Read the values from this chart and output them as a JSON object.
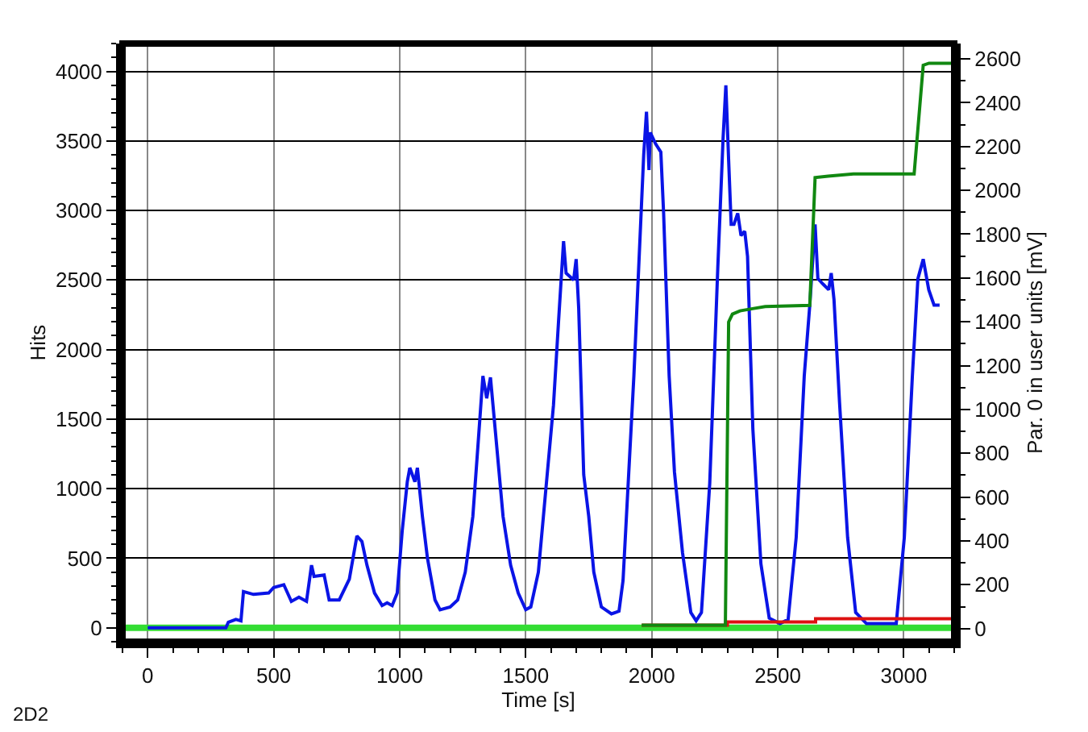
{
  "chart_data": {
    "type": "line",
    "xlabel": "Time [s]",
    "ylabel": "Hits",
    "y2label": "Par. 0 in user units [mV]",
    "xlim": [
      -100,
      3200
    ],
    "xticks": [
      0,
      500,
      1000,
      1500,
      2000,
      2500,
      3000
    ],
    "ylim": [
      -100,
      4200
    ],
    "yticks": [
      0,
      500,
      1000,
      1500,
      2000,
      2500,
      3000,
      3500,
      4000
    ],
    "y2lim": [
      -60,
      2670
    ],
    "y2ticks": [
      0,
      200,
      400,
      600,
      800,
      1000,
      1200,
      1400,
      1600,
      1800,
      2000,
      2200,
      2400,
      2600
    ],
    "grid": true,
    "marker": "none",
    "line_style": "solid",
    "annotations": [
      "2D2"
    ],
    "series": [
      {
        "color": "#33dd33",
        "x": [
          -100,
          3200
        ],
        "values": [
          0,
          0
        ]
      },
      {
        "color": "#dd1111",
        "axis": "y2",
        "x": [
          1960,
          2300,
          2300,
          2650,
          2650,
          3200
        ],
        "values": [
          15,
          15,
          30,
          30,
          45,
          45
        ]
      },
      {
        "color": "#118811",
        "axis": "y2",
        "x": [
          1960,
          2292,
          2305,
          2320,
          2350,
          2400,
          2450,
          2627,
          2648,
          2700,
          2800,
          3041,
          3077,
          3100,
          3200
        ],
        "values": [
          15,
          15,
          1399,
          1435,
          1450,
          1460,
          1470,
          1475,
          2058,
          2065,
          2075,
          2075,
          2571,
          2580,
          2580
        ]
      },
      {
        "color": "#0a14e6",
        "x": [
          0,
          310,
          320,
          350,
          370,
          380,
          420,
          480,
          500,
          540,
          570,
          600,
          630,
          650,
          660,
          700,
          720,
          760,
          800,
          830,
          850,
          870,
          900,
          930,
          950,
          970,
          990,
          1010,
          1030,
          1040,
          1060,
          1070,
          1090,
          1110,
          1140,
          1160,
          1200,
          1230,
          1260,
          1290,
          1310,
          1330,
          1345,
          1360,
          1380,
          1410,
          1440,
          1470,
          1500,
          1520,
          1550,
          1580,
          1610,
          1630,
          1650,
          1660,
          1690,
          1700,
          1710,
          1730,
          1750,
          1770,
          1800,
          1840,
          1870,
          1886,
          1929,
          1968,
          1979,
          1989,
          1994,
          2015,
          2036,
          2047,
          2069,
          2090,
          2122,
          2155,
          2176,
          2197,
          2230,
          2262,
          2283,
          2294,
          2305,
          2315,
          2326,
          2341,
          2354,
          2369,
          2380,
          2401,
          2433,
          2466,
          2509,
          2541,
          2573,
          2605,
          2627,
          2648,
          2659,
          2680,
          2702,
          2712,
          2723,
          2745,
          2777,
          2809,
          2852,
          2970,
          3002,
          3034,
          3056,
          3077,
          3099,
          3120,
          3142
        ],
        "values": [
          0,
          0,
          40,
          60,
          50,
          260,
          240,
          250,
          290,
          310,
          190,
          220,
          190,
          450,
          370,
          380,
          200,
          200,
          350,
          660,
          620,
          450,
          250,
          160,
          180,
          160,
          250,
          700,
          1050,
          1150,
          1050,
          1150,
          800,
          500,
          200,
          130,
          150,
          200,
          400,
          800,
          1300,
          1810,
          1650,
          1800,
          1400,
          800,
          450,
          250,
          130,
          150,
          400,
          1000,
          1600,
          2200,
          2780,
          2550,
          2500,
          2650,
          2300,
          1100,
          800,
          400,
          150,
          100,
          120,
          340,
          1810,
          3400,
          3710,
          3290,
          3560,
          3480,
          3420,
          2980,
          1810,
          1120,
          540,
          110,
          50,
          110,
          1040,
          2590,
          3520,
          3900,
          3360,
          2900,
          2900,
          2980,
          2820,
          2850,
          2670,
          1430,
          460,
          70,
          30,
          60,
          650,
          1810,
          2320,
          2900,
          2510,
          2470,
          2430,
          2550,
          2360,
          1620,
          650,
          110,
          30,
          30,
          650,
          1810,
          2510,
          2650,
          2430,
          2320,
          2320
        ]
      }
    ]
  }
}
